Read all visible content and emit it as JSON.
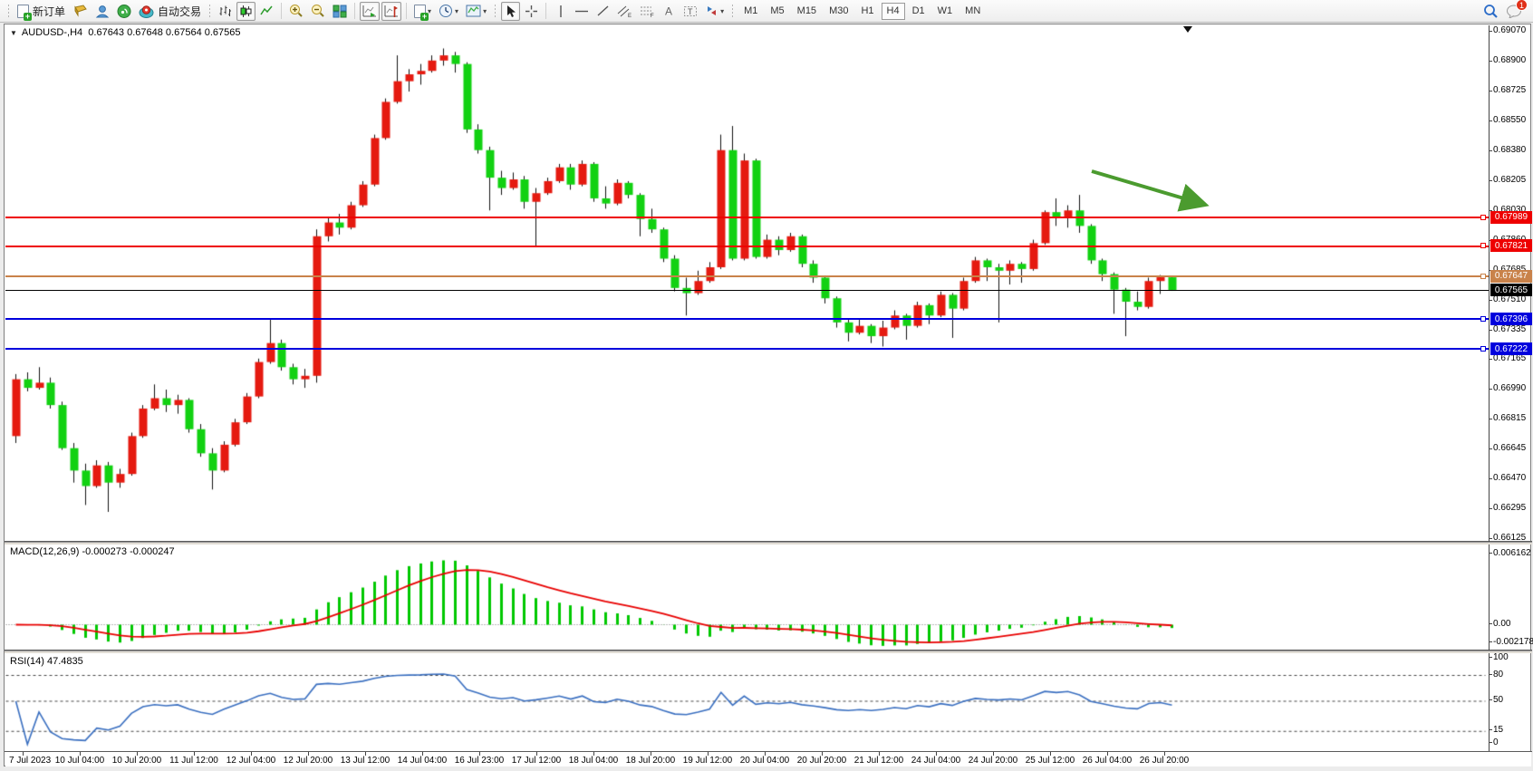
{
  "toolbar": {
    "new_order_label": "新订单",
    "autotrade_label": "自动交易",
    "timeframes": [
      "M1",
      "M5",
      "M15",
      "M30",
      "H1",
      "H4",
      "D1",
      "W1",
      "MN"
    ],
    "active_timeframe": "H4",
    "notification_count": "1",
    "icons": [
      "new-order-icon",
      "profile-icon",
      "community-icon",
      "signals-icon",
      "autotrade-icon",
      "bar-chart-icon",
      "candlestick-icon",
      "line-chart-icon",
      "zoom-in-icon",
      "zoom-out-icon",
      "tile-windows-icon",
      "autoscroll-icon",
      "chart-shift-icon",
      "indicators-icon",
      "periods-icon",
      "templates-icon",
      "cursor-icon",
      "crosshair-icon",
      "vertical-line-icon",
      "horizontal-line-icon",
      "trendline-icon",
      "channel-icon",
      "fibonacci-icon",
      "text-icon",
      "label-icon",
      "arrows-icon",
      "search-icon",
      "chat-icon"
    ]
  },
  "chart": {
    "title_symbol": "AUDUSD-,H4",
    "title_ohlc": "0.67643 0.67648 0.67564 0.67565",
    "price_axis": [
      "0.69070",
      "0.68900",
      "0.68725",
      "0.68550",
      "0.68380",
      "0.68205",
      "0.68030",
      "0.67860",
      "0.67685",
      "0.67510",
      "0.67335",
      "0.67165",
      "0.66990",
      "0.66815",
      "0.66645",
      "0.66470",
      "0.66295",
      "0.66125"
    ],
    "hlines": [
      {
        "price": 0.67989,
        "label": "0.67989",
        "color": "#ee0000",
        "width": 2,
        "handle": true
      },
      {
        "price": 0.67821,
        "label": "0.67821",
        "color": "#ee0000",
        "width": 2,
        "handle": true
      },
      {
        "price": 0.67647,
        "label": "0.67647",
        "color": "#c9824a",
        "width": 2,
        "handle": true
      },
      {
        "price": 0.67565,
        "label": "0.67565",
        "color": "#000000",
        "width": 1,
        "handle": false
      },
      {
        "price": 0.67396,
        "label": "0.67396",
        "color": "#0000dd",
        "width": 2,
        "handle": true
      },
      {
        "price": 0.67222,
        "label": "0.67222",
        "color": "#0000dd",
        "width": 2,
        "handle": true
      }
    ],
    "time_axis": [
      "7 Jul 2023",
      "10 Jul 04:00",
      "10 Jul 20:00",
      "11 Jul 12:00",
      "12 Jul 04:00",
      "12 Jul 20:00",
      "13 Jul 12:00",
      "14 Jul 04:00",
      "16 Jul 23:00",
      "17 Jul 12:00",
      "18 Jul 04:00",
      "18 Jul 20:00",
      "19 Jul 12:00",
      "20 Jul 04:00",
      "20 Jul 20:00",
      "21 Jul 12:00",
      "24 Jul 04:00",
      "24 Jul 20:00",
      "25 Jul 12:00",
      "26 Jul 04:00",
      "26 Jul 20:00"
    ]
  },
  "macd_panel": {
    "label": "MACD(12,26,9) -0.000273 -0.000247",
    "axis": [
      "0.006162",
      "0.00",
      "-0.002178"
    ]
  },
  "rsi_panel": {
    "label": "RSI(14) 47.4835",
    "axis": [
      "100",
      "80",
      "50",
      "15",
      "0"
    ]
  },
  "chart_data": {
    "type": "candlestick",
    "symbol": "AUDUSD-",
    "timeframe": "H4",
    "title": "AUDUSD-,H4  0.67643 0.67648 0.67564 0.67565",
    "ylim": [
      0.66125,
      0.6907
    ],
    "x_labels": [
      "7 Jul 2023",
      "10 Jul 04:00",
      "10 Jul 20:00",
      "11 Jul 12:00",
      "12 Jul 04:00",
      "12 Jul 20:00",
      "13 Jul 12:00",
      "14 Jul 04:00",
      "16 Jul 23:00",
      "17 Jul 12:00",
      "18 Jul 04:00",
      "18 Jul 20:00",
      "19 Jul 12:00",
      "20 Jul 04:00",
      "20 Jul 20:00",
      "21 Jul 12:00",
      "24 Jul 04:00",
      "24 Jul 20:00",
      "25 Jul 12:00",
      "26 Jul 04:00",
      "26 Jul 20:00"
    ],
    "ohlc": [
      [
        0.6672,
        0.6708,
        0.6668,
        0.6705
      ],
      [
        0.6705,
        0.6709,
        0.6698,
        0.67
      ],
      [
        0.67,
        0.6712,
        0.6699,
        0.6703
      ],
      [
        0.6703,
        0.6706,
        0.6688,
        0.669
      ],
      [
        0.669,
        0.6692,
        0.6664,
        0.6665
      ],
      [
        0.6665,
        0.6668,
        0.6645,
        0.6652
      ],
      [
        0.6652,
        0.6656,
        0.6632,
        0.6643
      ],
      [
        0.6643,
        0.6658,
        0.6642,
        0.6655
      ],
      [
        0.6655,
        0.6657,
        0.6628,
        0.6645
      ],
      [
        0.6645,
        0.6653,
        0.6642,
        0.665
      ],
      [
        0.665,
        0.6674,
        0.6649,
        0.6672
      ],
      [
        0.6672,
        0.669,
        0.6671,
        0.6688
      ],
      [
        0.6688,
        0.6702,
        0.6687,
        0.6694
      ],
      [
        0.6694,
        0.6699,
        0.6686,
        0.669
      ],
      [
        0.669,
        0.6696,
        0.6685,
        0.6693
      ],
      [
        0.6693,
        0.6694,
        0.6674,
        0.6676
      ],
      [
        0.6676,
        0.6679,
        0.666,
        0.6662
      ],
      [
        0.6662,
        0.6665,
        0.6641,
        0.6652
      ],
      [
        0.6652,
        0.6669,
        0.6651,
        0.6667
      ],
      [
        0.6667,
        0.6682,
        0.6666,
        0.668
      ],
      [
        0.668,
        0.6697,
        0.6679,
        0.6695
      ],
      [
        0.6695,
        0.6717,
        0.6694,
        0.6715
      ],
      [
        0.6715,
        0.674,
        0.6714,
        0.6726
      ],
      [
        0.6726,
        0.6728,
        0.671,
        0.6712
      ],
      [
        0.6712,
        0.6714,
        0.6702,
        0.6705
      ],
      [
        0.6705,
        0.6711,
        0.67,
        0.6707
      ],
      [
        0.6707,
        0.6792,
        0.6703,
        0.6788
      ],
      [
        0.6788,
        0.6799,
        0.6785,
        0.6796
      ],
      [
        0.6796,
        0.6801,
        0.6789,
        0.6793
      ],
      [
        0.6793,
        0.6808,
        0.6792,
        0.6806
      ],
      [
        0.6806,
        0.682,
        0.6805,
        0.6818
      ],
      [
        0.6818,
        0.6847,
        0.6817,
        0.6845
      ],
      [
        0.6845,
        0.6868,
        0.6844,
        0.6866
      ],
      [
        0.6866,
        0.6893,
        0.6865,
        0.6878
      ],
      [
        0.6878,
        0.6885,
        0.6872,
        0.6882
      ],
      [
        0.6882,
        0.6888,
        0.6876,
        0.6884
      ],
      [
        0.6884,
        0.6893,
        0.6883,
        0.689
      ],
      [
        0.689,
        0.6897,
        0.6887,
        0.6893
      ],
      [
        0.6893,
        0.6895,
        0.6883,
        0.6888
      ],
      [
        0.6888,
        0.6889,
        0.6848,
        0.685
      ],
      [
        0.685,
        0.6853,
        0.6836,
        0.6838
      ],
      [
        0.6838,
        0.684,
        0.6803,
        0.6822
      ],
      [
        0.6822,
        0.6826,
        0.6812,
        0.6816
      ],
      [
        0.6816,
        0.6825,
        0.6815,
        0.6821
      ],
      [
        0.6821,
        0.6823,
        0.6804,
        0.6808
      ],
      [
        0.6808,
        0.6816,
        0.6782,
        0.6813
      ],
      [
        0.6813,
        0.6822,
        0.6812,
        0.682
      ],
      [
        0.682,
        0.683,
        0.6819,
        0.6828
      ],
      [
        0.6828,
        0.683,
        0.6815,
        0.6818
      ],
      [
        0.6818,
        0.6832,
        0.6817,
        0.683
      ],
      [
        0.683,
        0.6831,
        0.6808,
        0.681
      ],
      [
        0.681,
        0.6817,
        0.6804,
        0.6807
      ],
      [
        0.6807,
        0.6821,
        0.6806,
        0.6819
      ],
      [
        0.6819,
        0.682,
        0.681,
        0.6812
      ],
      [
        0.6812,
        0.6813,
        0.6788,
        0.6798
      ],
      [
        0.6798,
        0.6804,
        0.679,
        0.6792
      ],
      [
        0.6792,
        0.6793,
        0.6773,
        0.6775
      ],
      [
        0.6775,
        0.6777,
        0.6756,
        0.6758
      ],
      [
        0.6758,
        0.6764,
        0.6742,
        0.6755
      ],
      [
        0.6755,
        0.6768,
        0.6754,
        0.6762
      ],
      [
        0.6762,
        0.6773,
        0.6761,
        0.677
      ],
      [
        0.677,
        0.6847,
        0.6769,
        0.6838
      ],
      [
        0.6838,
        0.6852,
        0.6774,
        0.6775
      ],
      [
        0.6775,
        0.6836,
        0.6774,
        0.6832
      ],
      [
        0.6832,
        0.6833,
        0.6775,
        0.6776
      ],
      [
        0.6776,
        0.6789,
        0.6775,
        0.6786
      ],
      [
        0.6786,
        0.6788,
        0.6777,
        0.678
      ],
      [
        0.678,
        0.679,
        0.6779,
        0.6788
      ],
      [
        0.6788,
        0.6789,
        0.677,
        0.6772
      ],
      [
        0.6772,
        0.6774,
        0.6761,
        0.6764
      ],
      [
        0.6764,
        0.6765,
        0.6749,
        0.6752
      ],
      [
        0.6752,
        0.6753,
        0.6735,
        0.6738
      ],
      [
        0.6738,
        0.674,
        0.6727,
        0.6732
      ],
      [
        0.6732,
        0.674,
        0.6731,
        0.6736
      ],
      [
        0.6736,
        0.6737,
        0.6726,
        0.673
      ],
      [
        0.673,
        0.6739,
        0.6724,
        0.6735
      ],
      [
        0.6735,
        0.6745,
        0.6734,
        0.6742
      ],
      [
        0.6742,
        0.6743,
        0.6728,
        0.6736
      ],
      [
        0.6736,
        0.675,
        0.6735,
        0.6748
      ],
      [
        0.6748,
        0.6749,
        0.6737,
        0.6742
      ],
      [
        0.6742,
        0.6756,
        0.6741,
        0.6754
      ],
      [
        0.6754,
        0.6755,
        0.6729,
        0.6746
      ],
      [
        0.6746,
        0.6764,
        0.6745,
        0.6762
      ],
      [
        0.6762,
        0.6776,
        0.6761,
        0.6774
      ],
      [
        0.6774,
        0.6775,
        0.6762,
        0.677
      ],
      [
        0.677,
        0.6772,
        0.6738,
        0.6768
      ],
      [
        0.6768,
        0.6774,
        0.676,
        0.6772
      ],
      [
        0.6772,
        0.6773,
        0.6761,
        0.6769
      ],
      [
        0.6769,
        0.6786,
        0.6768,
        0.6784
      ],
      [
        0.6784,
        0.6803,
        0.6783,
        0.6802
      ],
      [
        0.6802,
        0.681,
        0.6794,
        0.6799
      ],
      [
        0.6799,
        0.6806,
        0.6793,
        0.6803
      ],
      [
        0.6803,
        0.6812,
        0.679,
        0.6794
      ],
      [
        0.6794,
        0.6795,
        0.6772,
        0.6774
      ],
      [
        0.6774,
        0.6775,
        0.6762,
        0.6766
      ],
      [
        0.6766,
        0.6767,
        0.6743,
        0.6757
      ],
      [
        0.6757,
        0.6758,
        0.673,
        0.675
      ],
      [
        0.675,
        0.6756,
        0.6745,
        0.6747
      ],
      [
        0.6747,
        0.6764,
        0.6746,
        0.6762
      ],
      [
        0.6762,
        0.67655,
        0.67545,
        0.67645
      ],
      [
        0.67643,
        0.67648,
        0.67564,
        0.67565
      ]
    ],
    "indicators": [
      {
        "type": "MACD",
        "params": [
          12,
          26,
          9
        ],
        "displayed_values": [
          -0.000273,
          -0.000247
        ],
        "ylim": [
          -0.002178,
          0.006162
        ],
        "axis_labels": [
          "0.006162",
          "0.00",
          "-0.002178"
        ]
      },
      {
        "type": "RSI",
        "params": [
          14
        ],
        "displayed_value": 47.4835,
        "range": [
          0,
          100
        ],
        "levels": [
          80,
          50,
          15
        ]
      }
    ],
    "colors": {
      "bull": "#e51a10",
      "bear": "#12d112",
      "wick": "#111111",
      "macd_hist": "#00c800",
      "macd_signal": "#e80000",
      "rsi_line": "#3a6fc0"
    }
  },
  "annotations": {
    "arrow": {
      "color": "#4b9b2f",
      "direction": "down-right"
    }
  }
}
